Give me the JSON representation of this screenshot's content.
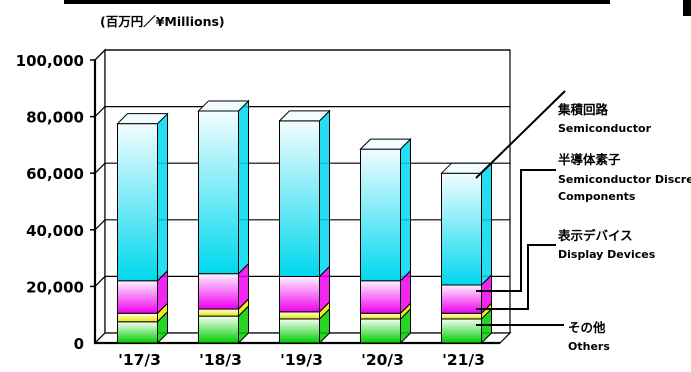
{
  "chart_data": {
    "type": "bar",
    "stacked": true,
    "three_d": true,
    "unit_label": "(百万円／¥Millions)",
    "categories": [
      "'17/3",
      "'18/3",
      "'19/3",
      "'20/3",
      "'21/3"
    ],
    "y_ticks": [
      "0",
      "20,000",
      "40,000",
      "60,000",
      "80,000",
      "100,000"
    ],
    "ylim": [
      0,
      100000
    ],
    "grid": true,
    "series": [
      {
        "name": "その他",
        "name_en": "Others",
        "values": [
          7500,
          9500,
          8500,
          8500,
          8500
        ],
        "colors": [
          "#00cc00",
          "#f5fff5"
        ]
      },
      {
        "name": "表示デバイス",
        "name_en": "Display Devices",
        "values": [
          3000,
          2500,
          2500,
          2000,
          2000
        ],
        "colors": [
          "#e6e600",
          "#fffff2"
        ]
      },
      {
        "name": "半導体素子",
        "name_en": "Semiconductor Discrete Components",
        "values": [
          11500,
          12500,
          12500,
          11500,
          10000
        ],
        "colors": [
          "#ee00ee",
          "#fff2ff"
        ]
      },
      {
        "name": "集積回路",
        "name_en": "Semiconductor",
        "values": [
          55500,
          57500,
          55000,
          46500,
          39500
        ],
        "colors": [
          "#00d8ee",
          "#f2fdff"
        ]
      }
    ],
    "legend": [
      {
        "ja": "集積回路",
        "en": "Semiconductor"
      },
      {
        "ja": "半導体素子",
        "en": "Semiconductor Discrete",
        "en2": "Components"
      },
      {
        "ja": "表示デバイス",
        "en": "Display Devices"
      },
      {
        "ja": "その他",
        "en": "Others"
      }
    ]
  }
}
